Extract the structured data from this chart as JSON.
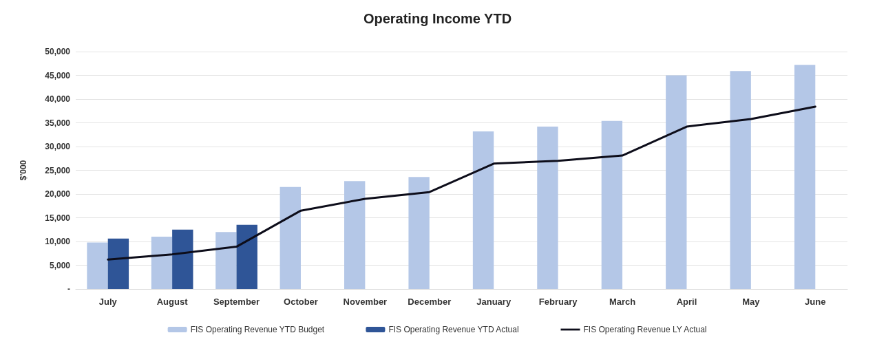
{
  "chart_data": {
    "type": "bar",
    "title": "Operating Income YTD",
    "ylabel": "$'000",
    "categories": [
      "July",
      "August",
      "September",
      "October",
      "November",
      "December",
      "January",
      "February",
      "March",
      "April",
      "May",
      "June"
    ],
    "series": [
      {
        "name": "FIS Operating Revenue YTD Budget",
        "color": "#b4c7e7",
        "values": [
          9800,
          11000,
          12000,
          21500,
          22700,
          23600,
          33200,
          34200,
          35400,
          45000,
          45900,
          47200
        ]
      },
      {
        "name": "FIS Operating Revenue YTD Actual",
        "color": "#2f5597",
        "values": [
          10600,
          12500,
          13500,
          null,
          null,
          null,
          null,
          null,
          null,
          null,
          null,
          null
        ]
      },
      {
        "name": "FIS Operating Revenue LY Actual",
        "type": "line",
        "color": "#0d0d1a",
        "marker": "none",
        "values": [
          6200,
          7300,
          8900,
          16500,
          19000,
          20400,
          26400,
          27000,
          28100,
          34200,
          35800,
          38400
        ]
      }
    ],
    "ylim": [
      0,
      50000
    ],
    "yticks": [
      {
        "value": 0,
        "label": "-"
      },
      {
        "value": 5000,
        "label": "5,000"
      },
      {
        "value": 10000,
        "label": "10,000"
      },
      {
        "value": 15000,
        "label": "15,000"
      },
      {
        "value": 20000,
        "label": "20,000"
      },
      {
        "value": 25000,
        "label": "25,000"
      },
      {
        "value": 30000,
        "label": "30,000"
      },
      {
        "value": 35000,
        "label": "35,000"
      },
      {
        "value": 40000,
        "label": "40,000"
      },
      {
        "value": 45000,
        "label": "45,000"
      },
      {
        "value": 50000,
        "label": "50,000"
      }
    ],
    "grid": "y",
    "legend": "bottom"
  }
}
